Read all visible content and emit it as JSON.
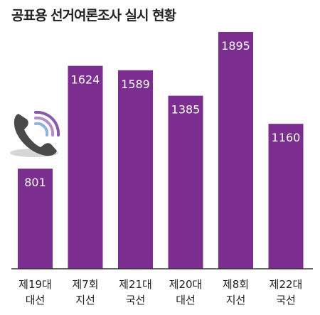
{
  "chart_data": {
    "type": "bar",
    "title": "공표용 선거여론조사 실시 현황",
    "categories": [
      [
        "제19대",
        "대선"
      ],
      [
        "제7회",
        "지선"
      ],
      [
        "제21대",
        "국선"
      ],
      [
        "제20대",
        "대선"
      ],
      [
        "제8회",
        "지선"
      ],
      [
        "제22대",
        "국선"
      ]
    ],
    "values": [
      801,
      1624,
      1589,
      1385,
      1895,
      1160
    ],
    "data_labels": [
      "801",
      "1624",
      "1589",
      "1385",
      "1895",
      "1160"
    ],
    "ylim": [
      0,
      1895
    ],
    "grid": false,
    "legend": "none",
    "colors": {
      "bar": "#7B2E8F",
      "axis": "#333333",
      "icon": "#4a4a4a",
      "wave": "#8a5aa8"
    }
  }
}
